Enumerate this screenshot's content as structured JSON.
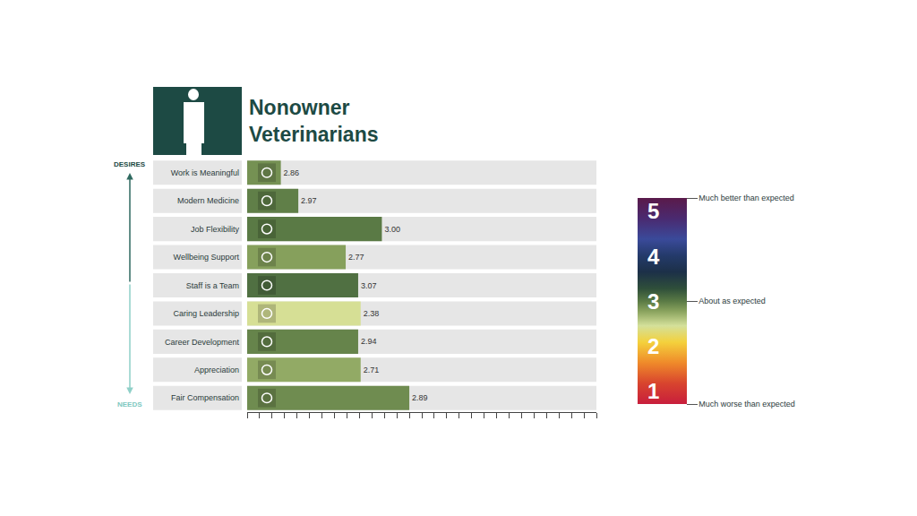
{
  "chart_data": {
    "type": "bar",
    "orientation": "horizontal",
    "title": "Nonowner Veterinarians",
    "axis_top_label": "DESIRES",
    "axis_bottom_label": "NEEDS",
    "categories": [
      "Work is Meaningful",
      "Modern Medicine",
      "Job Flexibility",
      "Wellbeing Support",
      "Staff is a Team",
      "Caring Leadership",
      "Career Development",
      "Appreciation",
      "Fair Compensation"
    ],
    "values": [
      2.7,
      4.1,
      10.8,
      7.9,
      8.9,
      9.1,
      8.9,
      9.1,
      13.0
    ],
    "scores": [
      2.86,
      2.97,
      3.0,
      2.77,
      3.07,
      2.38,
      2.94,
      2.71,
      2.89
    ],
    "score_labels": [
      "2.86",
      "2.97",
      "3.00",
      "2.77",
      "3.07",
      "2.38",
      "2.94",
      "2.71",
      "2.89"
    ],
    "xlim": [
      0,
      28
    ],
    "xticks": [
      0,
      1,
      2,
      3,
      4,
      5,
      6,
      7,
      8,
      9,
      10,
      11,
      12,
      13,
      14,
      15,
      16,
      17,
      18,
      19,
      20,
      21,
      22,
      23,
      24,
      25,
      26,
      27,
      28
    ],
    "tick_labels": "y",
    "grid": false,
    "color_scale": {
      "range": [
        0.5,
        5.5
      ],
      "numbers": [
        1,
        2,
        3,
        4,
        5
      ],
      "ticks": [
        {
          "value": 0.5,
          "label": "Much worse than expected"
        },
        {
          "value": 3,
          "label": "About as expected"
        },
        {
          "value": 5.5,
          "label": "Much better than expected"
        }
      ]
    }
  }
}
